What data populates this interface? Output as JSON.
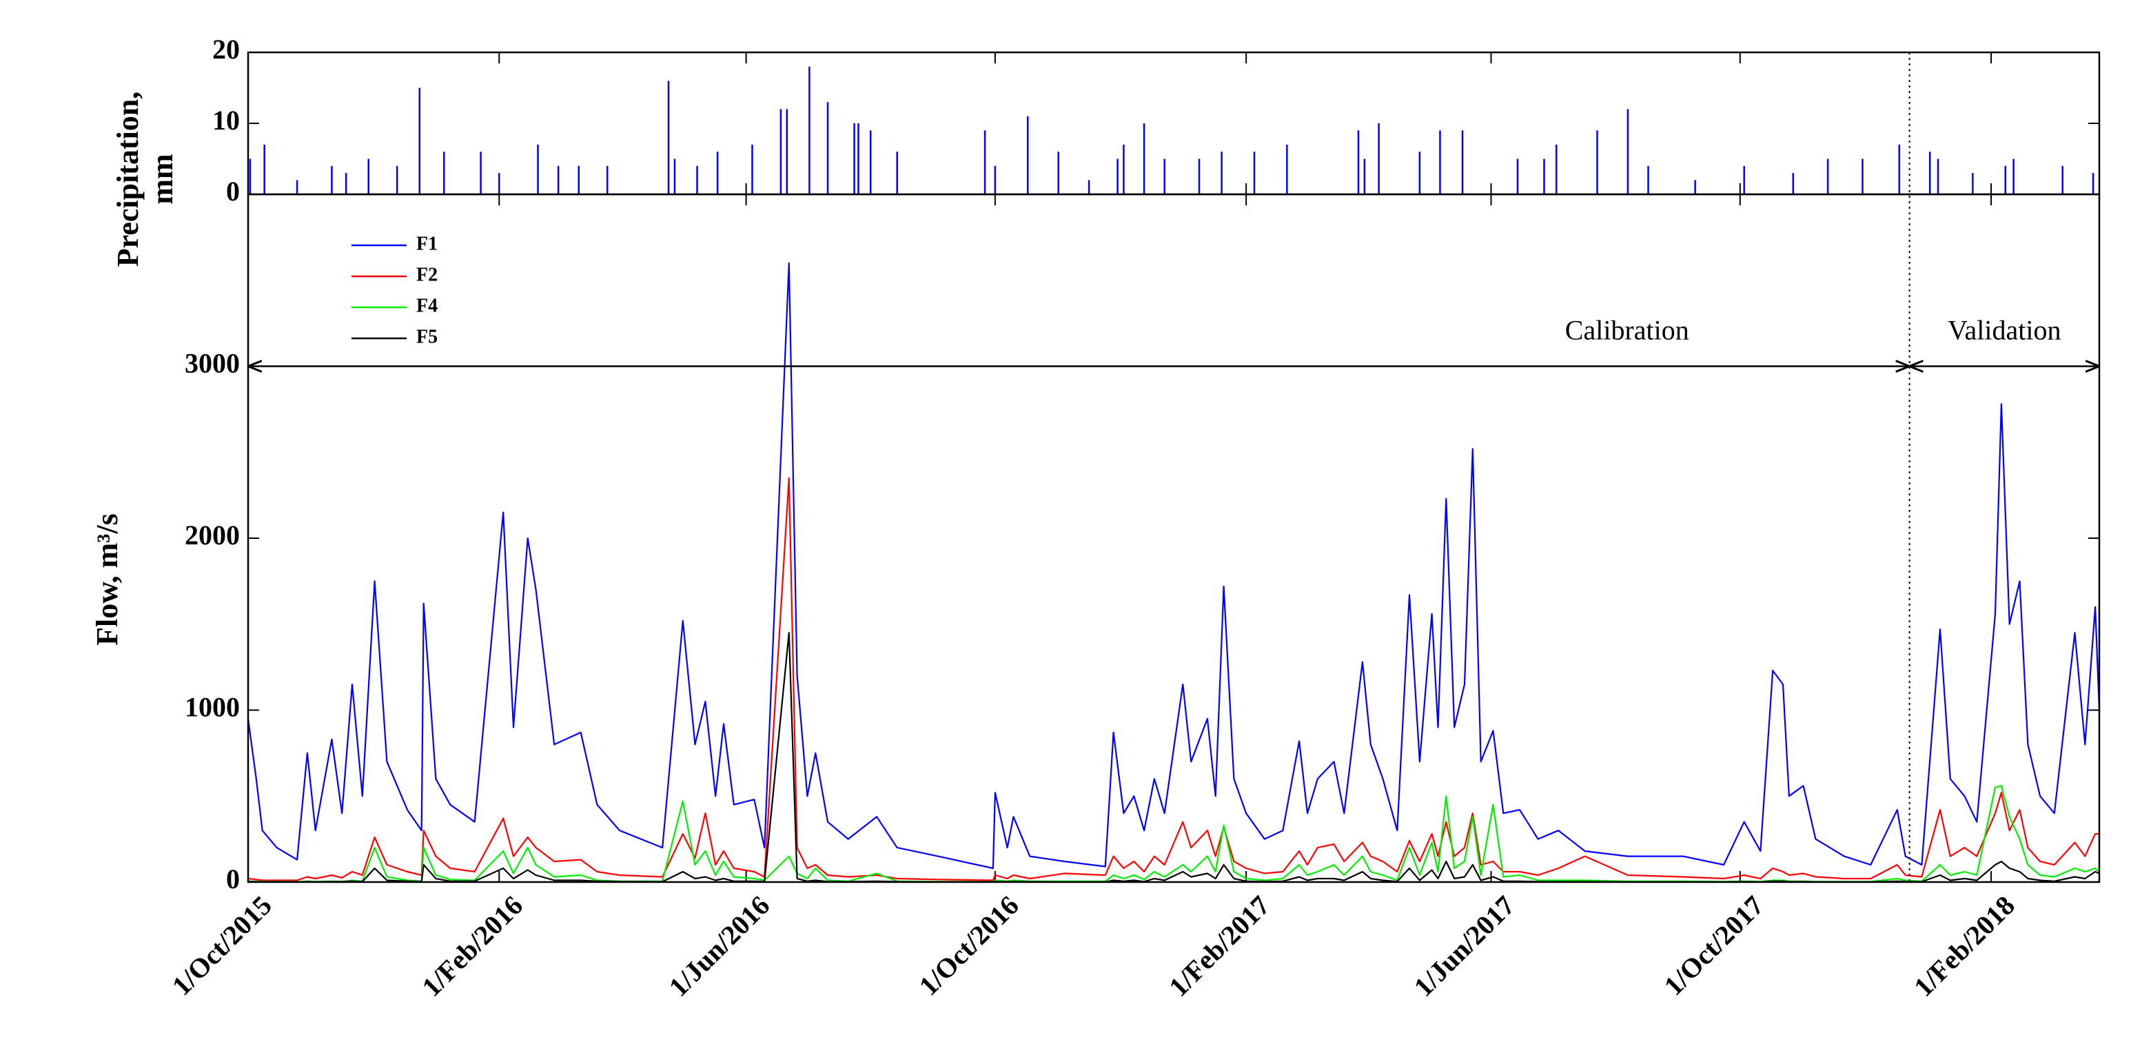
{
  "chart_data": [
    {
      "type": "bar",
      "ylabel": [
        "Precipitation,",
        "mm"
      ],
      "color": "#0000ff",
      "x": [
        "2015-10-02",
        "2015-10-09",
        "2015-10-25",
        "2015-11-11",
        "2015-11-18",
        "2015-11-29",
        "2015-12-13",
        "2015-12-24",
        "2016-01-05",
        "2016-01-23",
        "2016-02-01",
        "2016-02-20",
        "2016-03-01",
        "2016-03-11",
        "2016-03-25",
        "2016-04-24",
        "2016-04-27",
        "2016-05-08",
        "2016-05-18",
        "2016-06-04",
        "2016-06-18",
        "2016-06-21",
        "2016-07-02",
        "2016-07-11",
        "2016-07-24",
        "2016-07-26",
        "2016-08-01",
        "2016-08-14",
        "2016-09-26",
        "2016-10-01",
        "2016-10-17",
        "2016-11-01",
        "2016-11-16",
        "2016-11-30",
        "2016-12-03",
        "2016-12-13",
        "2016-12-23",
        "2017-01-09",
        "2017-01-20",
        "2017-02-05",
        "2017-02-21",
        "2017-03-28",
        "2017-03-31",
        "2017-04-07",
        "2017-04-27",
        "2017-05-07",
        "2017-05-18",
        "2017-06-14",
        "2017-06-27",
        "2017-07-03",
        "2017-07-23",
        "2017-08-07",
        "2017-08-17",
        "2017-09-09",
        "2017-10-03",
        "2017-10-27",
        "2017-11-13",
        "2017-11-30",
        "2017-12-18",
        "2018-01-02",
        "2018-01-06",
        "2018-01-23",
        "2018-02-08",
        "2018-02-12",
        "2018-03-08",
        "2018-03-23"
      ],
      "values": [
        5,
        7,
        2,
        4,
        3,
        5,
        4,
        15,
        6,
        6,
        3,
        7,
        4,
        4,
        4,
        16,
        5,
        4,
        6,
        7,
        12,
        12,
        18,
        13,
        10,
        10,
        9,
        6,
        9,
        4,
        11,
        6,
        2,
        5,
        7,
        10,
        5,
        5,
        6,
        6,
        7,
        9,
        5,
        10,
        6,
        9,
        9,
        5,
        5,
        7,
        9,
        12,
        4,
        2,
        4,
        3,
        5,
        5,
        7,
        6,
        5,
        3,
        4,
        5,
        4,
        3
      ],
      "xlim": [
        "2015-10-01",
        "2018-03-26"
      ],
      "ylim": [
        0,
        20
      ],
      "yticks": [
        0,
        10,
        20
      ]
    },
    {
      "type": "line",
      "ylabel": "Flow, m³/s",
      "legend": "upper left",
      "x": [
        "2015-10-01",
        "2015-10-05",
        "2015-10-08",
        "2015-10-15",
        "2015-10-25",
        "2015-10-30",
        "2015-11-03",
        "2015-11-11",
        "2015-11-16",
        "2015-11-21",
        "2015-11-26",
        "2015-12-02",
        "2015-12-08",
        "2015-12-18",
        "2015-12-25",
        "2015-12-26",
        "2016-01-01",
        "2016-01-08",
        "2016-01-20",
        "2016-02-03",
        "2016-02-08",
        "2016-02-15",
        "2016-02-19",
        "2016-02-28",
        "2016-03-12",
        "2016-03-20",
        "2016-03-31",
        "2016-04-21",
        "2016-05-01",
        "2016-05-07",
        "2016-05-12",
        "2016-05-17",
        "2016-05-21",
        "2016-05-26",
        "2016-06-05",
        "2016-06-10",
        "2016-06-22",
        "2016-06-26",
        "2016-07-01",
        "2016-07-05",
        "2016-07-11",
        "2016-07-21",
        "2016-08-04",
        "2016-08-14",
        "2016-09-03",
        "2016-09-30",
        "2016-10-01",
        "2016-10-07",
        "2016-10-10",
        "2016-10-18",
        "2016-11-04",
        "2016-11-24",
        "2016-11-28",
        "2016-12-03",
        "2016-12-08",
        "2016-12-13",
        "2016-12-18",
        "2016-12-23",
        "2017-01-01",
        "2017-01-05",
        "2017-01-13",
        "2017-01-17",
        "2017-01-21",
        "2017-01-26",
        "2017-02-01",
        "2017-02-10",
        "2017-02-19",
        "2017-02-27",
        "2017-03-03",
        "2017-03-08",
        "2017-03-16",
        "2017-03-21",
        "2017-03-30",
        "2017-04-03",
        "2017-04-09",
        "2017-04-16",
        "2017-04-22",
        "2017-04-27",
        "2017-05-03",
        "2017-05-06",
        "2017-05-10",
        "2017-05-14",
        "2017-05-19",
        "2017-05-23",
        "2017-05-27",
        "2017-06-02",
        "2017-06-07",
        "2017-06-15",
        "2017-06-24",
        "2017-07-04",
        "2017-07-17",
        "2017-08-07",
        "2017-09-03",
        "2017-09-23",
        "2017-10-03",
        "2017-10-11",
        "2017-10-17",
        "2017-10-22",
        "2017-10-25",
        "2017-11-01",
        "2017-11-07",
        "2017-11-21",
        "2017-12-04",
        "2017-12-17",
        "2017-12-21",
        "2017-12-29",
        "2018-01-07",
        "2018-01-12",
        "2018-01-19",
        "2018-01-25",
        "2018-02-03",
        "2018-02-06",
        "2018-02-10",
        "2018-02-15",
        "2018-02-19",
        "2018-02-25",
        "2018-03-04",
        "2018-03-14",
        "2018-03-19",
        "2018-03-24",
        "2018-03-26"
      ],
      "series": [
        {
          "name": "F1",
          "color": "#0000ff",
          "values": [
            950,
            600,
            300,
            200,
            130,
            750,
            300,
            830,
            400,
            1150,
            500,
            1750,
            700,
            420,
            300,
            1620,
            600,
            450,
            350,
            2150,
            900,
            2000,
            1700,
            800,
            870,
            450,
            300,
            200,
            1520,
            800,
            1050,
            500,
            920,
            450,
            480,
            200,
            3600,
            1200,
            500,
            750,
            350,
            250,
            380,
            200,
            150,
            80,
            520,
            200,
            380,
            150,
            120,
            90,
            870,
            400,
            500,
            300,
            600,
            400,
            1150,
            700,
            950,
            500,
            1720,
            600,
            400,
            250,
            300,
            820,
            400,
            600,
            700,
            400,
            1280,
            800,
            600,
            300,
            1670,
            700,
            1560,
            900,
            2230,
            900,
            1150,
            2520,
            700,
            880,
            400,
            420,
            250,
            300,
            180,
            150,
            150,
            100,
            350,
            180,
            1230,
            1150,
            500,
            560,
            250,
            150,
            100,
            420,
            150,
            100,
            1470,
            600,
            500,
            350,
            1560,
            2780,
            1500,
            1750,
            800,
            500,
            400,
            1450,
            800,
            1600,
            1000
          ]
        },
        {
          "name": "F2",
          "color": "#ff0000",
          "values": [
            20,
            15,
            10,
            10,
            10,
            30,
            20,
            40,
            25,
            60,
            40,
            260,
            100,
            60,
            40,
            300,
            150,
            80,
            60,
            370,
            150,
            260,
            200,
            120,
            130,
            60,
            40,
            30,
            280,
            140,
            400,
            100,
            180,
            80,
            60,
            30,
            2350,
            200,
            80,
            100,
            40,
            30,
            40,
            20,
            15,
            10,
            40,
            20,
            40,
            20,
            50,
            40,
            150,
            80,
            120,
            60,
            150,
            100,
            350,
            200,
            300,
            150,
            320,
            120,
            80,
            50,
            60,
            180,
            100,
            200,
            220,
            120,
            230,
            150,
            120,
            60,
            240,
            120,
            280,
            150,
            350,
            150,
            200,
            400,
            100,
            120,
            60,
            60,
            40,
            80,
            150,
            40,
            30,
            20,
            40,
            20,
            80,
            60,
            40,
            50,
            30,
            20,
            20,
            100,
            40,
            30,
            420,
            150,
            200,
            150,
            400,
            520,
            300,
            420,
            200,
            120,
            100,
            230,
            150,
            280,
            280
          ]
        },
        {
          "name": "F4",
          "color": "#00ee00",
          "values": [
            5,
            5,
            3,
            3,
            2,
            5,
            3,
            5,
            3,
            10,
            5,
            200,
            30,
            10,
            5,
            200,
            40,
            15,
            10,
            180,
            50,
            200,
            100,
            30,
            40,
            10,
            5,
            5,
            470,
            100,
            180,
            40,
            120,
            30,
            20,
            10,
            150,
            50,
            20,
            80,
            10,
            5,
            50,
            5,
            3,
            2,
            10,
            5,
            10,
            5,
            5,
            5,
            40,
            20,
            40,
            15,
            60,
            30,
            100,
            60,
            150,
            60,
            330,
            60,
            20,
            10,
            20,
            100,
            40,
            60,
            100,
            40,
            150,
            60,
            40,
            10,
            200,
            40,
            230,
            60,
            500,
            80,
            120,
            380,
            40,
            450,
            30,
            40,
            10,
            10,
            10,
            5,
            5,
            3,
            5,
            3,
            10,
            10,
            5,
            5,
            3,
            3,
            3,
            20,
            10,
            5,
            100,
            40,
            60,
            40,
            550,
            560,
            380,
            250,
            100,
            40,
            30,
            80,
            60,
            80,
            60
          ]
        },
        {
          "name": "F5",
          "color": "#000000",
          "values": [
            2,
            2,
            1,
            1,
            1,
            3,
            1,
            3,
            2,
            5,
            2,
            80,
            10,
            5,
            3,
            100,
            20,
            5,
            5,
            80,
            20,
            70,
            40,
            10,
            10,
            5,
            3,
            2,
            60,
            20,
            30,
            10,
            20,
            5,
            5,
            2,
            1450,
            20,
            5,
            10,
            3,
            2,
            5,
            2,
            1,
            1,
            3,
            2,
            3,
            2,
            1,
            1,
            10,
            5,
            10,
            3,
            20,
            10,
            60,
            30,
            50,
            20,
            100,
            20,
            5,
            3,
            5,
            30,
            10,
            20,
            20,
            10,
            60,
            20,
            10,
            3,
            80,
            10,
            70,
            20,
            120,
            20,
            30,
            100,
            10,
            30,
            5,
            5,
            2,
            2,
            2,
            1,
            1,
            1,
            2,
            1,
            5,
            5,
            2,
            2,
            1,
            1,
            1,
            5,
            3,
            2,
            40,
            10,
            20,
            10,
            100,
            120,
            80,
            60,
            20,
            10,
            5,
            30,
            20,
            60,
            50
          ]
        }
      ],
      "xlim": [
        "2015-10-01",
        "2018-03-26"
      ],
      "ylim": [
        0,
        4000
      ],
      "yticks": [
        0,
        1000,
        2000,
        3000
      ],
      "xticks": [
        {
          "value": "2015-10-01",
          "label": "1/Oct/2015"
        },
        {
          "value": "2016-02-01",
          "label": "1/Feb/2016"
        },
        {
          "value": "2016-06-01",
          "label": "1/Jun/2016"
        },
        {
          "value": "2016-10-01",
          "label": "1/Oct/2016"
        },
        {
          "value": "2017-02-01",
          "label": "1/Feb/2017"
        },
        {
          "value": "2017-06-01",
          "label": "1/Jun/2017"
        },
        {
          "value": "2017-10-01",
          "label": "1/Oct/2017"
        },
        {
          "value": "2018-02-01",
          "label": "1/Feb/2018"
        }
      ],
      "periods": [
        {
          "label": "Calibration",
          "start": "2015-10-01",
          "end": "2017-12-23"
        },
        {
          "label": "Validation",
          "start": "2017-12-23",
          "end": "2018-03-26"
        }
      ],
      "period_arrow_y": 3000
    }
  ]
}
